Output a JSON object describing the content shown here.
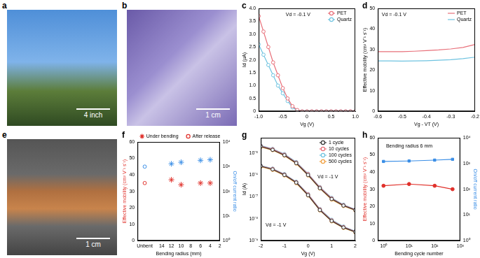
{
  "images": [
    {
      "title": "a",
      "annotation": "4 inch"
    },
    {
      "title": "b",
      "annotation": "1 cm"
    },
    {
      "title": "e",
      "annotation": "1 cm"
    }
  ],
  "chart_data": [
    {
      "type": "line",
      "title": "c",
      "annotations": [
        "Vd = -0.1 V"
      ],
      "x_label": "Vg (V)",
      "y_label": "Id (µA)",
      "x": [
        -1,
        -0.9,
        -0.8,
        -0.7,
        -0.6,
        -0.5,
        -0.4,
        -0.3,
        -0.2,
        -0.1,
        0,
        0.1,
        0.2,
        0.3,
        0.4,
        0.5,
        0.6,
        0.7,
        0.8,
        0.9,
        1
      ],
      "series": [
        {
          "name": "PET",
          "color": "#e8707a",
          "marker": "circle_open",
          "line_style": "solid",
          "values": [
            3.7,
            3.1,
            2.5,
            1.9,
            1.4,
            0.9,
            0.5,
            0.2,
            0.05,
            0,
            0,
            0,
            0,
            0,
            0,
            0,
            0,
            0,
            0,
            0,
            0
          ]
        },
        {
          "name": "Quartz",
          "color": "#6fc3e0",
          "marker": "circle_open",
          "line_style": "solid",
          "values": [
            2.6,
            2.2,
            1.8,
            1.4,
            1.0,
            0.7,
            0.4,
            0.15,
            0.03,
            0,
            0,
            0,
            0,
            0,
            0,
            0,
            0,
            0,
            0,
            0,
            0
          ]
        }
      ],
      "xlim": [
        -1,
        1
      ],
      "xticks": [
        {
          "value": -1,
          "label": "-1.0"
        },
        -0.5,
        0,
        0.5,
        {
          "value": 1,
          "label": "1.0"
        }
      ],
      "ylim": [
        0,
        4
      ],
      "yticks": [
        0,
        0.5,
        {
          "value": 1,
          "label": "1.0"
        },
        1.5,
        {
          "value": 2,
          "label": "2.0"
        },
        2.5,
        {
          "value": 3,
          "label": "3.0"
        },
        3.5,
        {
          "value": 4,
          "label": "4.0"
        }
      ],
      "grid": false,
      "legend": "upper right"
    },
    {
      "type": "line",
      "title": "d",
      "annotations": [
        "Vd = -0.1 V"
      ],
      "x_label": "Vg - VT (V)",
      "y_label": "Effective mobility (cm² V⁻¹ s⁻¹)",
      "x": [
        -0.6,
        -0.55,
        -0.5,
        -0.45,
        -0.4,
        -0.35,
        -0.3,
        -0.25,
        -0.2
      ],
      "series": [
        {
          "name": "PET",
          "color": "#e8707a",
          "marker": "none",
          "line_style": "solid",
          "values": [
            29,
            29,
            29,
            29.2,
            29.5,
            29.8,
            30.3,
            31,
            32.5
          ]
        },
        {
          "name": "Quartz",
          "color": "#6fc3e0",
          "marker": "none",
          "line_style": "solid",
          "values": [
            24.5,
            24.5,
            24.4,
            24.5,
            24.6,
            24.8,
            25.1,
            25.6,
            26.3
          ]
        }
      ],
      "xlim": [
        -0.6,
        -0.2
      ],
      "xticks": [
        -0.6,
        -0.5,
        -0.4,
        -0.3,
        -0.2
      ],
      "ylim": [
        0,
        50
      ],
      "yticks": [
        0,
        10,
        20,
        30,
        40,
        50
      ],
      "grid": false,
      "legend": "upper right"
    },
    {
      "type": "scatter",
      "title": "f",
      "x_label": "Bending radius (mm)",
      "y_label": "Effective mobility (cm² V⁻¹ s⁻¹)",
      "y2_label": "On/off current ratio",
      "series": [
        {
          "name": "Under bending",
          "color": "#e0302a",
          "marker": "star",
          "x": [
            12,
            10,
            6,
            4
          ],
          "values": [
            37,
            34,
            35,
            35
          ]
        },
        {
          "name": "Under bending",
          "color": "#3a8ee6",
          "marker": "star",
          "axis": "y2",
          "x": [
            12,
            10,
            6,
            4
          ],
          "values": [
            1300,
            1500,
            1800,
            1900
          ]
        },
        {
          "name": "After release",
          "color": "#e0302a",
          "marker": "circle_open",
          "x": [
            17.5
          ],
          "values": [
            35
          ]
        },
        {
          "name": "After release",
          "color": "#3a8ee6",
          "marker": "circle_open",
          "axis": "y2",
          "x": [
            17.5
          ],
          "values": [
            1000
          ]
        }
      ],
      "xlim": [
        19,
        2
      ],
      "xticks": [
        {
          "value": 17.5,
          "label": "Unbent"
        },
        14,
        12,
        10,
        8,
        6,
        4,
        2
      ],
      "ylim": [
        0,
        60
      ],
      "yticks": [
        0,
        10,
        20,
        30,
        40,
        50,
        60
      ],
      "y2lim": [
        1,
        10000
      ],
      "y2ticks": [
        {
          "value": 1,
          "label": "10⁰"
        },
        {
          "value": 10,
          "label": "10¹"
        },
        {
          "value": 100,
          "label": "10²"
        },
        {
          "value": 1000,
          "label": "10³"
        },
        {
          "value": 10000,
          "label": "10⁴"
        }
      ],
      "log": "y2",
      "grid": false,
      "legend": "top"
    },
    {
      "type": "line",
      "title": "g",
      "annotations": [
        "Vd = -1 V",
        "Vd = -1 V"
      ],
      "x_label": "Vg (V)",
      "y_label": "Id (A)",
      "x": [
        -2,
        -1.5,
        -1,
        -0.5,
        0,
        0.5,
        1,
        1.5,
        2
      ],
      "series": [
        {
          "name": "1 cycle",
          "color": "#333333",
          "marker": "circle_open",
          "line_style": "solid",
          "values": [
            2e-05,
            1.4e-05,
            8e-06,
            3.5e-06,
            1e-06,
            2.5e-07,
            8e-08,
            4e-08,
            2.5e-08
          ]
        },
        {
          "name": "10 cycles",
          "color": "#e8707a",
          "marker": "circle_open",
          "line_style": "solid",
          "values": [
            2.1e-05,
            1.5e-05,
            8.5e-06,
            3.7e-06,
            1.1e-06,
            2.7e-07,
            8.5e-08,
            4.2e-08,
            2.6e-08
          ]
        },
        {
          "name": "100 cycles",
          "color": "#6fc3e0",
          "marker": "circle_open",
          "line_style": "solid",
          "values": [
            2.2e-05,
            1.55e-05,
            9e-06,
            3.9e-06,
            1.15e-06,
            2.8e-07,
            9e-08,
            4.4e-08,
            2.7e-08
          ]
        },
        {
          "name": "500 cycles",
          "color": "#f0a040",
          "marker": "circle_open",
          "line_style": "solid",
          "values": [
            1.9e-05,
            1.35e-05,
            7.6e-06,
            3.3e-06,
            9.5e-07,
            2.4e-07,
            7.5e-08,
            3.8e-08,
            2.4e-08
          ]
        },
        {
          "name": "1 cycle",
          "color": "#333333",
          "marker": "circle_open",
          "line_style": "solid",
          "values": [
            2.5e-06,
            1.8e-06,
            1e-06,
            4.5e-07,
            1.2e-07,
            2.5e-08,
            8e-09,
            4e-09,
            2.5e-09
          ]
        },
        {
          "name": "10 cycles",
          "color": "#e8707a",
          "marker": "circle_open",
          "line_style": "solid",
          "values": [
            2.6e-06,
            1.9e-06,
            1.05e-06,
            4.7e-07,
            1.3e-07,
            2.7e-08,
            8.5e-09,
            4.2e-09,
            2.6e-09
          ]
        },
        {
          "name": "100 cycles",
          "color": "#6fc3e0",
          "marker": "circle_open",
          "line_style": "solid",
          "values": [
            2.7e-06,
            1.95e-06,
            1.1e-06,
            4.9e-07,
            1.35e-07,
            2.8e-08,
            9e-09,
            4.4e-09,
            2.7e-09
          ]
        },
        {
          "name": "500 cycles",
          "color": "#f0a040",
          "marker": "circle_open",
          "line_style": "solid",
          "values": [
            2.4e-06,
            1.7e-06,
            9.5e-07,
            4.2e-07,
            1.15e-07,
            2.4e-08,
            7.6e-09,
            3.8e-09,
            2.4e-09
          ]
        }
      ],
      "xlim": [
        -2,
        2
      ],
      "xticks": [
        -2,
        -1,
        0,
        1,
        2
      ],
      "ylim": [
        1e-09,
        5e-05
      ],
      "yticks": [
        {
          "value": 1e-09,
          "label": "10⁻⁹"
        },
        {
          "value": 1e-08,
          "label": "10⁻⁸"
        },
        {
          "value": 1e-07,
          "label": "10⁻⁷"
        },
        {
          "value": 1e-06,
          "label": "10⁻⁶"
        },
        {
          "value": 1e-05,
          "label": "10⁻⁵"
        }
      ],
      "log": "y",
      "grid": false,
      "legend": "upper right"
    },
    {
      "type": "line",
      "title": "h",
      "annotations": [
        "Bending radius 6 mm"
      ],
      "x_label": "Bending cycle number",
      "y_label": "Effective mobility (cm² V⁻¹ s⁻¹)",
      "y2_label": "On/off current ratio",
      "x": [
        1,
        10,
        100,
        500
      ],
      "series": [
        {
          "color": "#e0302a",
          "marker": "circle",
          "line_style": "solid",
          "values": [
            32,
            33,
            32,
            30
          ]
        },
        {
          "color": "#3a8ee6",
          "marker": "square",
          "line_style": "solid",
          "axis": "y2",
          "values": [
            1200,
            1250,
            1350,
            1450
          ]
        }
      ],
      "xlim": [
        0.6,
        1000
      ],
      "xticks": [
        {
          "value": 1,
          "label": "10⁰"
        },
        {
          "value": 10,
          "label": "10¹"
        },
        {
          "value": 100,
          "label": "10²"
        },
        {
          "value": 1000,
          "label": "10³"
        }
      ],
      "ylim": [
        0,
        60
      ],
      "yticks": [
        0,
        10,
        20,
        30,
        40,
        50,
        60
      ],
      "y2lim": [
        1,
        10000
      ],
      "y2ticks": [
        {
          "value": 1,
          "label": "10⁰"
        },
        {
          "value": 10,
          "label": "10¹"
        },
        {
          "value": 100,
          "label": "10²"
        },
        {
          "value": 1000,
          "label": "10³"
        },
        {
          "value": 10000,
          "label": "10⁴"
        }
      ],
      "log": [
        "x",
        "y2"
      ],
      "grid": false
    }
  ]
}
